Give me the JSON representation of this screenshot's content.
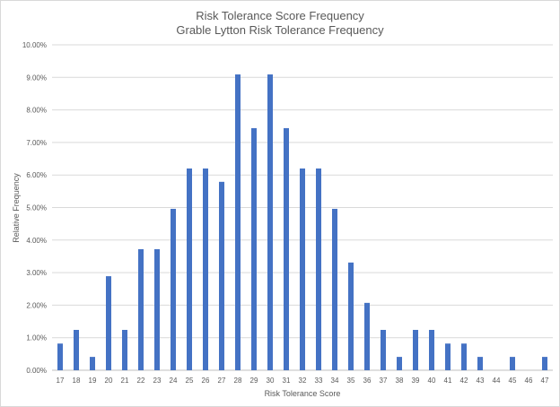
{
  "chart_data": {
    "type": "bar",
    "title": "Risk Tolerance Score Frequency",
    "subtitle": "Grable Lytton Risk Tolerance Frequency",
    "xlabel": "Risk Tolerance Score",
    "ylabel": "Relative Frequency",
    "categories": [
      "17",
      "18",
      "19",
      "20",
      "21",
      "22",
      "23",
      "24",
      "25",
      "26",
      "27",
      "28",
      "29",
      "30",
      "31",
      "32",
      "33",
      "34",
      "35",
      "36",
      "37",
      "38",
      "39",
      "40",
      "41",
      "42",
      "43",
      "44",
      "45",
      "46",
      "47"
    ],
    "values": [
      0.82,
      1.24,
      0.41,
      2.89,
      1.24,
      3.72,
      3.72,
      4.96,
      6.2,
      6.2,
      5.79,
      9.09,
      7.44,
      9.09,
      7.44,
      6.2,
      6.2,
      4.96,
      3.31,
      2.07,
      1.24,
      0.41,
      1.24,
      1.24,
      0.82,
      0.82,
      0.41,
      0,
      0.41,
      0,
      0.41
    ],
    "ylim": [
      0,
      10
    ],
    "yticks": [
      "0.00%",
      "1.00%",
      "2.00%",
      "3.00%",
      "4.00%",
      "5.00%",
      "6.00%",
      "7.00%",
      "8.00%",
      "9.00%",
      "10.00%"
    ],
    "bar_color": "#4472c4",
    "grid": true,
    "legend": "none"
  }
}
